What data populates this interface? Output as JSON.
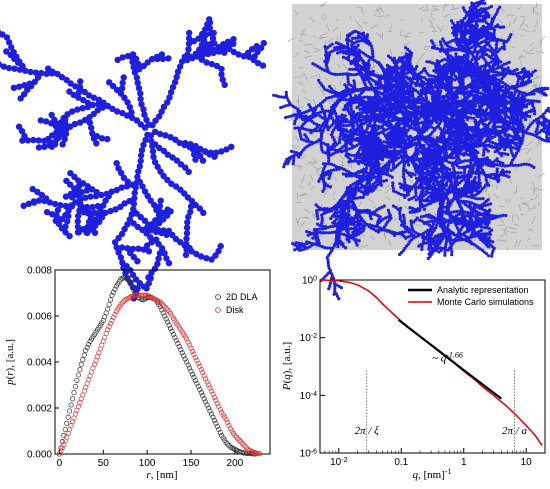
{
  "chart_data": [
    {
      "type": "image",
      "description_panel": "top-left",
      "dla_color": "#1f1fe0"
    },
    {
      "type": "image",
      "description_panel": "top-right",
      "background_color": "#cfcfcf",
      "dla_color": "#1f1fe0"
    },
    {
      "type": "scatter",
      "title": "",
      "xlabel": "r, [nm]",
      "ylabel": "p(r), [a.u.]",
      "xlim": [
        -5,
        240
      ],
      "ylim": [
        0,
        0.008
      ],
      "xticks": [
        "0",
        "50",
        "100",
        "150",
        "200"
      ],
      "xtick_values": [
        0,
        50,
        100,
        150,
        200
      ],
      "yticks": [
        "0.000",
        "0.002",
        "0.004",
        "0.006",
        "0.008"
      ],
      "ytick_values": [
        0,
        0.002,
        0.004,
        0.006,
        0.008
      ],
      "legend_position": "top-right",
      "series": [
        {
          "name": "2D DLA",
          "color": "#333333",
          "x": [
            0,
            5,
            10,
            15,
            20,
            25,
            30,
            35,
            40,
            45,
            50,
            55,
            60,
            65,
            70,
            75,
            80,
            85,
            90,
            95,
            100,
            105,
            110,
            115,
            120,
            125,
            130,
            135,
            140,
            145,
            150,
            155,
            160,
            165,
            170,
            175,
            180,
            185,
            190,
            195,
            200,
            205,
            210,
            215,
            220,
            225
          ],
          "y": [
            0,
            0.0008,
            0.0016,
            0.0024,
            0.0032,
            0.0039,
            0.0045,
            0.0049,
            0.0052,
            0.0055,
            0.0058,
            0.0063,
            0.0069,
            0.0073,
            0.0076,
            0.0077,
            0.0075,
            0.0071,
            0.0068,
            0.0067,
            0.0068,
            0.0068,
            0.0067,
            0.0064,
            0.006,
            0.0056,
            0.0052,
            0.0048,
            0.0044,
            0.004,
            0.0036,
            0.0032,
            0.0028,
            0.0024,
            0.002,
            0.0016,
            0.0012,
            0.0008,
            0.0005,
            0.0003,
            0.0002,
            0.0001,
            5e-05,
            2e-05,
            1e-05,
            0
          ]
        },
        {
          "name": "Disk",
          "color": "#e03030",
          "x": [
            0,
            5,
            10,
            15,
            20,
            25,
            30,
            35,
            40,
            45,
            50,
            55,
            60,
            65,
            70,
            75,
            80,
            85,
            90,
            95,
            100,
            105,
            110,
            115,
            120,
            125,
            130,
            135,
            140,
            145,
            150,
            155,
            160,
            165,
            170,
            175,
            180,
            185,
            190,
            195,
            200,
            205,
            210,
            215,
            220,
            225,
            230
          ],
          "y": [
            0,
            0.0004,
            0.0009,
            0.0014,
            0.0019,
            0.0024,
            0.0029,
            0.0034,
            0.0039,
            0.0044,
            0.0049,
            0.0054,
            0.0058,
            0.0062,
            0.0065,
            0.0067,
            0.0068,
            0.0069,
            0.0069,
            0.0069,
            0.0069,
            0.0068,
            0.0067,
            0.0066,
            0.0064,
            0.0062,
            0.0059,
            0.0056,
            0.0053,
            0.005,
            0.0046,
            0.0042,
            0.0038,
            0.0034,
            0.003,
            0.0026,
            0.0022,
            0.0018,
            0.0015,
            0.0011,
            0.0008,
            0.0006,
            0.0004,
            0.0002,
            0.0001,
            3e-05,
            0
          ]
        }
      ]
    },
    {
      "type": "line",
      "title": "",
      "xlabel": "q, [nm]",
      "xlabel_sup": "-1",
      "ylabel": "P(q), [a.u.]",
      "xscale": "log",
      "yscale": "log",
      "xlim": [
        0.005,
        20
      ],
      "ylim": [
        1e-06,
        1
      ],
      "xticks": [
        "10",
        "0.1",
        "1",
        "10"
      ],
      "xtick_sups": [
        "-2",
        "",
        "",
        ""
      ],
      "xtick_values": [
        0.01,
        0.1,
        1,
        10
      ],
      "yticks": [
        "10",
        "10",
        "10",
        "10"
      ],
      "ytick_sups": [
        "0",
        "-2",
        "-4",
        "-6"
      ],
      "ytick_values": [
        1,
        0.01,
        0.0001,
        1e-06
      ],
      "legend_position": "top-right",
      "annotations": [
        {
          "text": "~ q",
          "sup": "-1.66",
          "x": 0.55,
          "y": 0.0015
        },
        {
          "text": "2π / ξ",
          "x": 0.028,
          "y": 4.5e-06
        },
        {
          "text": "2π / a",
          "x": 6.5,
          "y": 4.5e-06
        }
      ],
      "vlines": [
        0.028,
        6.5
      ],
      "series": [
        {
          "name": "Monte Carlo simulations",
          "color": "#e00000",
          "x": [
            0.005,
            0.008,
            0.01,
            0.015,
            0.02,
            0.03,
            0.04,
            0.05,
            0.07,
            0.1,
            0.15,
            0.2,
            0.3,
            0.5,
            0.7,
            1,
            1.5,
            2,
            3,
            5,
            7,
            10,
            14,
            18
          ],
          "y": [
            1,
            0.97,
            0.93,
            0.82,
            0.68,
            0.42,
            0.25,
            0.15,
            0.075,
            0.037,
            0.018,
            0.011,
            0.0055,
            0.0023,
            0.0013,
            0.0007,
            0.00035,
            0.0002,
            0.0001,
            4e-05,
            2e-05,
            9e-06,
            4e-06,
            1.8e-06
          ]
        },
        {
          "name": "Analytic representation",
          "color": "#000000",
          "x": [
            0.09,
            0.2,
            0.5,
            1,
            2,
            4
          ],
          "y": [
            0.042,
            0.011,
            0.0024,
            0.00075,
            0.00024,
            7.7e-05
          ]
        }
      ]
    }
  ]
}
